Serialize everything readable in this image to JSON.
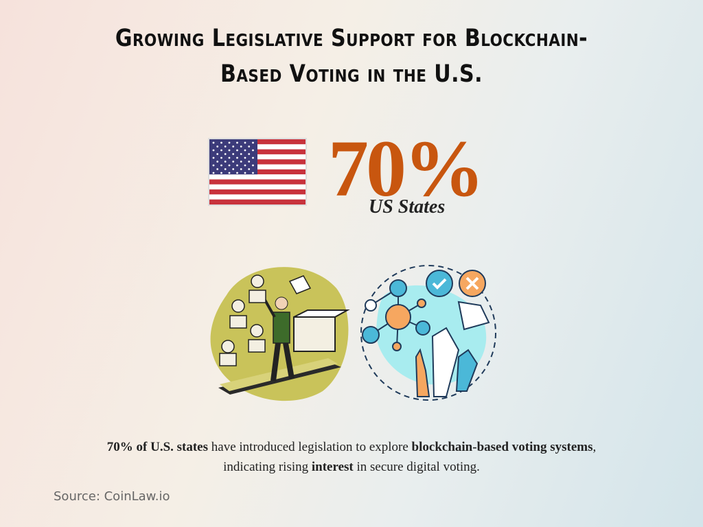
{
  "header": {
    "title_lines": [
      "Growing Legislative Support for Blockchain-",
      "Based Voting in the U.S."
    ]
  },
  "stat": {
    "value_text": "70%",
    "label": "US States"
  },
  "description": {
    "lines": [
      [
        {
          "text": "70% of U.S. states",
          "bold": true
        },
        {
          "text": " have introduced legislation to explore ",
          "bold": false
        },
        {
          "text": "blockchain-based voting systems",
          "bold": true
        },
        {
          "text": ",",
          "bold": false
        }
      ],
      [
        {
          "text": "indicating rising ",
          "bold": false
        },
        {
          "text": "interest",
          "bold": true
        },
        {
          "text": " in secure digital voting.",
          "bold": false
        }
      ]
    ]
  },
  "source": "Source: CoinLaw.io"
}
